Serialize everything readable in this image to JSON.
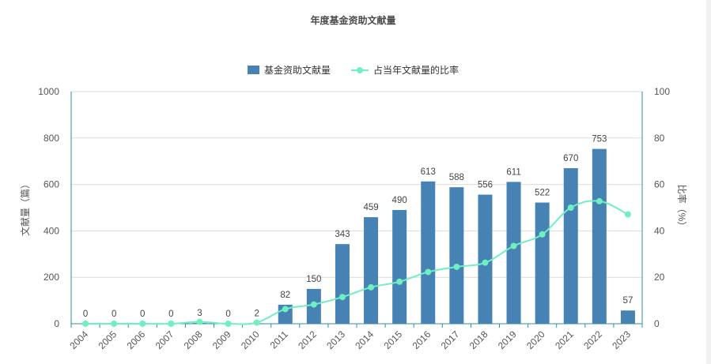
{
  "chart_data": {
    "type": "bar",
    "title": "年度基金资助文献量",
    "categories": [
      "2004",
      "2005",
      "2006",
      "2007",
      "2008",
      "2009",
      "2010",
      "2011",
      "2012",
      "2013",
      "2014",
      "2015",
      "2016",
      "2017",
      "2018",
      "2019",
      "2020",
      "2021",
      "2022",
      "2023"
    ],
    "series": [
      {
        "name": "基金资助文献量",
        "type": "bar",
        "axis": "left",
        "color": "#4682b4",
        "values": [
          0,
          0,
          0,
          0,
          3,
          0,
          2,
          82,
          150,
          343,
          459,
          490,
          613,
          588,
          556,
          611,
          522,
          670,
          753,
          57
        ],
        "data_labels": [
          "0",
          "0",
          "0",
          "0",
          "3",
          "0",
          "2",
          "82",
          "150",
          "343",
          "459",
          "490",
          "613",
          "588",
          "556",
          "611",
          "522",
          "670",
          "753",
          "57"
        ]
      },
      {
        "name": "占当年文献量的比率",
        "type": "line",
        "axis": "right",
        "color": "#6ff0c0",
        "values": [
          0,
          0,
          0,
          0,
          0.8,
          0,
          0.5,
          6.3,
          8.3,
          11.5,
          15.7,
          18.1,
          22.3,
          24.5,
          26.3,
          33.5,
          38.5,
          50,
          52.8,
          47.1
        ]
      }
    ],
    "ylabel": "文献量（篇）",
    "y2label": "比率（%）",
    "ylim": [
      0,
      1000
    ],
    "y2lim": [
      0,
      100
    ],
    "yticks": [
      "0",
      "200",
      "400",
      "600",
      "800",
      "1000"
    ],
    "y2ticks": [
      "0",
      "20",
      "40",
      "60",
      "80",
      "100"
    ],
    "grid": true,
    "legend_position": "top-center"
  }
}
